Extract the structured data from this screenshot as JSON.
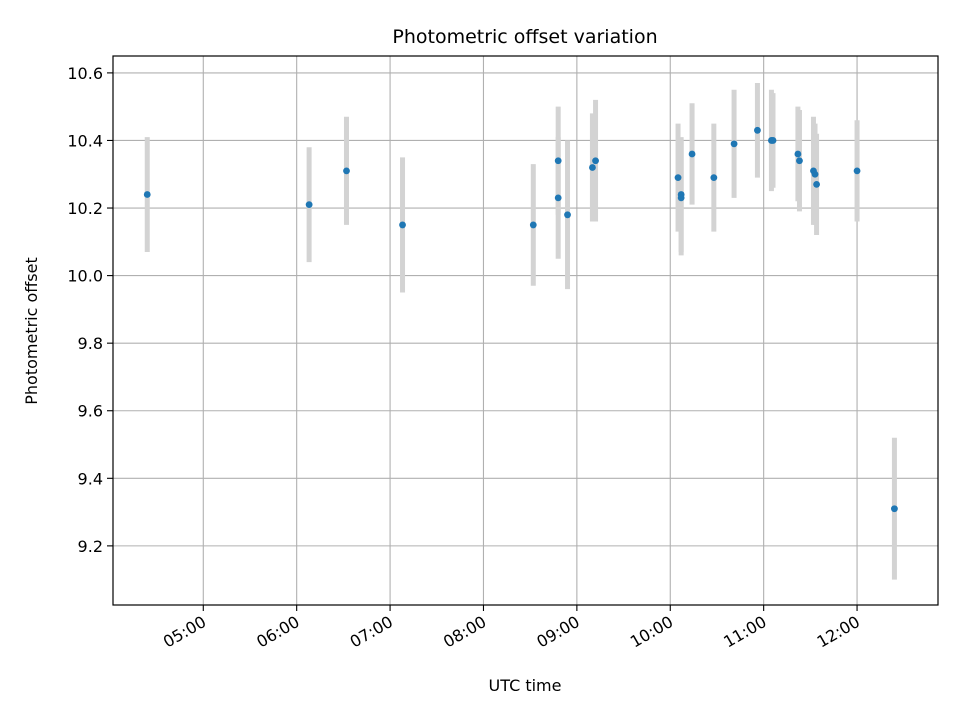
{
  "chart_data": {
    "type": "scatter",
    "title": "Photometric offset variation",
    "xlabel": "UTC time",
    "ylabel": "Photometric offset",
    "x_axis": "time",
    "xlim": [
      "04:02",
      "12:52"
    ],
    "ylim": [
      9.025,
      10.65
    ],
    "xticks": [
      "05:00",
      "06:00",
      "07:00",
      "08:00",
      "09:00",
      "10:00",
      "11:00",
      "12:00"
    ],
    "yticks": [
      9.2,
      9.4,
      9.6,
      9.8,
      10.0,
      10.2,
      10.4,
      10.6
    ],
    "ytick_labels": [
      "9.2",
      "9.4",
      "9.6",
      "9.8",
      "10.0",
      "10.2",
      "10.4",
      "10.6"
    ],
    "grid": true,
    "point_color": "#1f77b4",
    "errorbar_color": "#d3d3d3",
    "series": [
      {
        "points": [
          {
            "x": "04:24",
            "y": 10.24,
            "yerr": 0.17
          },
          {
            "x": "06:08",
            "y": 10.21,
            "yerr": 0.17
          },
          {
            "x": "06:32",
            "y": 10.31,
            "yerr": 0.16
          },
          {
            "x": "07:08",
            "y": 10.15,
            "yerr": 0.2
          },
          {
            "x": "08:32",
            "y": 10.15,
            "yerr": 0.18
          },
          {
            "x": "08:48",
            "y": 10.34,
            "yerr": 0.16
          },
          {
            "x": "08:48",
            "y": 10.23,
            "yerr": 0.18
          },
          {
            "x": "08:54",
            "y": 10.18,
            "yerr": 0.22
          },
          {
            "x": "09:10",
            "y": 10.32,
            "yerr": 0.16
          },
          {
            "x": "09:12",
            "y": 10.34,
            "yerr": 0.18
          },
          {
            "x": "10:05",
            "y": 10.29,
            "yerr": 0.16
          },
          {
            "x": "10:07",
            "y": 10.24,
            "yerr": 0.17
          },
          {
            "x": "10:07",
            "y": 10.23,
            "yerr": 0.17
          },
          {
            "x": "10:14",
            "y": 10.36,
            "yerr": 0.15
          },
          {
            "x": "10:28",
            "y": 10.29,
            "yerr": 0.16
          },
          {
            "x": "10:41",
            "y": 10.39,
            "yerr": 0.16
          },
          {
            "x": "10:56",
            "y": 10.43,
            "yerr": 0.14
          },
          {
            "x": "11:05",
            "y": 10.4,
            "yerr": 0.15
          },
          {
            "x": "11:06",
            "y": 10.4,
            "yerr": 0.14
          },
          {
            "x": "11:22",
            "y": 10.36,
            "yerr": 0.14
          },
          {
            "x": "11:23",
            "y": 10.34,
            "yerr": 0.15
          },
          {
            "x": "11:32",
            "y": 10.31,
            "yerr": 0.16
          },
          {
            "x": "11:33",
            "y": 10.3,
            "yerr": 0.15
          },
          {
            "x": "11:34",
            "y": 10.27,
            "yerr": 0.15
          },
          {
            "x": "12:00",
            "y": 10.31,
            "yerr": 0.15
          },
          {
            "x": "12:24",
            "y": 9.31,
            "yerr": 0.21
          }
        ]
      }
    ]
  }
}
